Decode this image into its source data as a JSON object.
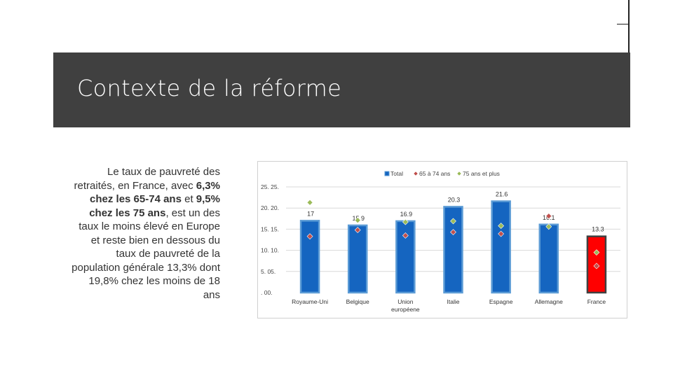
{
  "slide": {
    "title": "Contexte de la réforme"
  },
  "body": {
    "part1": "Le taux de pauvreté des retraités, en France, avec ",
    "part2": "6,3% chez les 65-74 ans",
    "part3": " et ",
    "part4": "9,5% chez les 75 ans",
    "part5": ", est un des taux le moins élevé en Europe et reste bien en dessous du taux de pauvreté de la population générale 13,3% dont 19,8% chez les moins de 18 ans"
  },
  "colors": {
    "title_band": "#404040",
    "bar_blue": "#1565C0",
    "bar_outline": "#5B9BD5",
    "bar_red": "#FF0000",
    "marker_65_74": "#C0504D",
    "marker_75_plus": "#9BBB59"
  },
  "chart_data": {
    "type": "bar",
    "categories": [
      "Royaume-Uni",
      "Belgique",
      "Union européene",
      "Italie",
      "Espagne",
      "Allemagne",
      "France"
    ],
    "series": [
      {
        "name": "Total",
        "values": [
          17,
          15.9,
          16.9,
          20.3,
          21.6,
          16.1,
          13.3
        ],
        "kind": "bar"
      },
      {
        "name": "65 à 74 ans",
        "values": [
          13.3,
          14.8,
          13.5,
          14.3,
          13.9,
          18.1,
          6.3
        ],
        "kind": "marker"
      },
      {
        "name": "75 ans et plus",
        "values": [
          21.3,
          17.1,
          16.7,
          16.9,
          15.8,
          15.6,
          9.5
        ],
        "kind": "marker"
      }
    ],
    "data_labels": [
      "17",
      "15.9",
      "16.9",
      "20.3",
      "21.6",
      "16.1",
      "13.3"
    ],
    "yticks": [
      {
        "value": 25,
        "label": "25. 25."
      },
      {
        "value": 20,
        "label": "20. 20."
      },
      {
        "value": 15,
        "label": "15. 15."
      },
      {
        "value": 10,
        "label": "10. 10."
      },
      {
        "value": 5,
        "label": "5. 05."
      },
      {
        "value": 0,
        "label": ". 00."
      }
    ],
    "ylim": [
      0,
      25
    ],
    "grid": true,
    "legend_position": "top-right",
    "highlight_category": "France"
  }
}
